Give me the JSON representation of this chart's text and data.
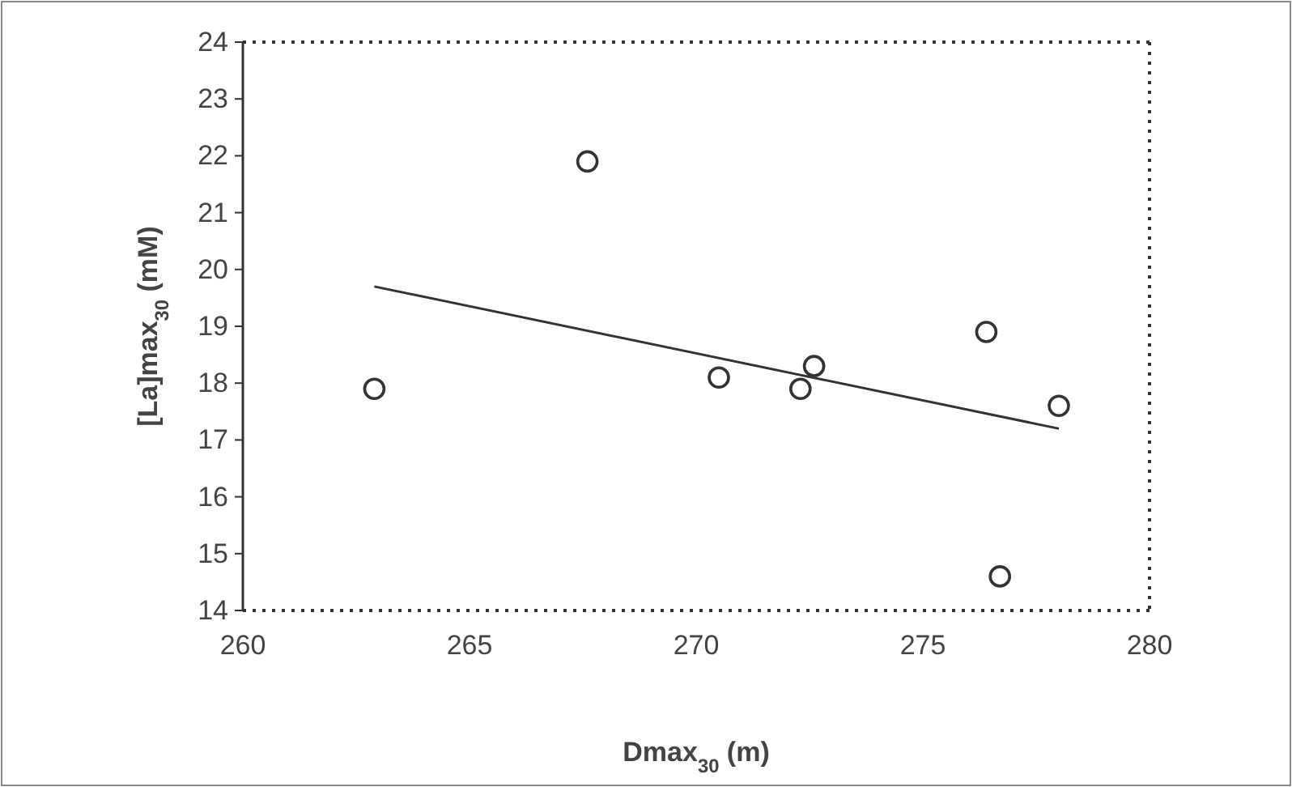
{
  "chart_data": {
    "type": "scatter",
    "xlabel": "Dmax$_{30}$ (m)",
    "ylabel": "[La]max$_{30}$ (mM)",
    "xlim": [
      260,
      280
    ],
    "xticks": [
      260,
      265,
      270,
      275,
      280
    ],
    "ylim": [
      14,
      24
    ],
    "yticks": [
      14,
      15,
      16,
      17,
      18,
      19,
      20,
      21,
      22,
      23,
      24
    ],
    "grid": false,
    "series": [
      {
        "color": "#333333",
        "marker": "circle",
        "x": [
          262.9,
          267.6,
          270.5,
          272.3,
          272.6,
          276.4,
          276.7,
          278.0
        ],
        "values": [
          17.9,
          21.9,
          18.1,
          17.9,
          18.3,
          18.9,
          14.6,
          17.6
        ]
      },
      {
        "type": "line",
        "color": "#333333",
        "marker": "none",
        "x": [
          262.9,
          278.0
        ],
        "values": [
          19.7,
          17.2
        ]
      }
    ]
  }
}
